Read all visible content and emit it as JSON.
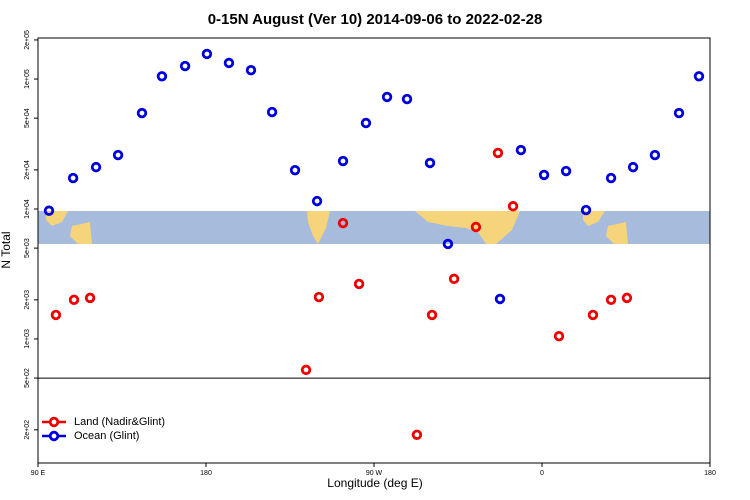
{
  "chart_data": {
    "type": "scatter",
    "title": "0-15N August (Ver 10)   2014-09-06 to 2022-02-28",
    "x_label": "Longitude (deg E)",
    "y_label": "N Total",
    "log_y": true,
    "xlim": [
      90,
      450
    ],
    "xticks": [
      {
        "value": 90,
        "label": "90 E"
      },
      {
        "value": 180,
        "label": "180"
      },
      {
        "value": 270,
        "label": "90 W"
      },
      {
        "value": 360,
        "label": "0"
      },
      {
        "value": 450,
        "label": "90 E"
      }
    ],
    "xticks_extra": [
      {
        "value": 450,
        "label": "180"
      }
    ],
    "ylim": [
      111,
      207000
    ],
    "yticks": [
      {
        "value": 200,
        "label": "2e+02"
      },
      {
        "value": 500,
        "label": "5e+02"
      },
      {
        "value": 1000,
        "label": "1e+03"
      },
      {
        "value": 2000,
        "label": "2e+03"
      },
      {
        "value": 5000,
        "label": "5e+03"
      },
      {
        "value": 10000,
        "label": "1e+04"
      },
      {
        "value": 20000,
        "label": "2e+04"
      },
      {
        "value": 50000,
        "label": "5e+04"
      },
      {
        "value": 100000,
        "label": "1e+05"
      },
      {
        "value": 200000,
        "label": "2e+05"
      }
    ],
    "hline": 500,
    "legend_position": "lower-left",
    "series": [
      {
        "name": "Land (Nadir&Glint)",
        "color": "#ee0000",
        "x": [
          99.6,
          109.3,
          117.9,
          233.6,
          240.5,
          253.4,
          262,
          293,
          301.1,
          312.9,
          324.6,
          336.4,
          344.5,
          369.1,
          387.3,
          397,
          405.5
        ],
        "values": [
          1530,
          2000,
          2070,
          578,
          2100,
          7800,
          2650,
          183,
          1530,
          2900,
          7270,
          27000,
          10500,
          1050,
          1530,
          2000,
          2070
        ]
      },
      {
        "name": "Ocean (Glint)",
        "color": "#0000dd",
        "x": [
          95.9,
          108.8,
          121.1,
          132.9,
          145.7,
          156.4,
          168.8,
          180.5,
          192.3,
          204.1,
          215.4,
          227.7,
          239.5,
          253.4,
          265.7,
          277,
          287.7,
          300,
          309.6,
          337.5,
          348.7,
          361.1,
          372.9,
          383.6,
          397,
          408.8,
          420.5,
          433.4,
          444.1
        ],
        "values": [
          9700,
          17300,
          21000,
          26000,
          54700,
          105000,
          126000,
          156000,
          133000,
          117000,
          55700,
          19900,
          11500,
          23400,
          45900,
          72800,
          70200,
          22600,
          5380,
          2030,
          28400,
          18300,
          19600,
          9820,
          17300,
          21000,
          26000,
          54700,
          105000
        ]
      }
    ]
  }
}
